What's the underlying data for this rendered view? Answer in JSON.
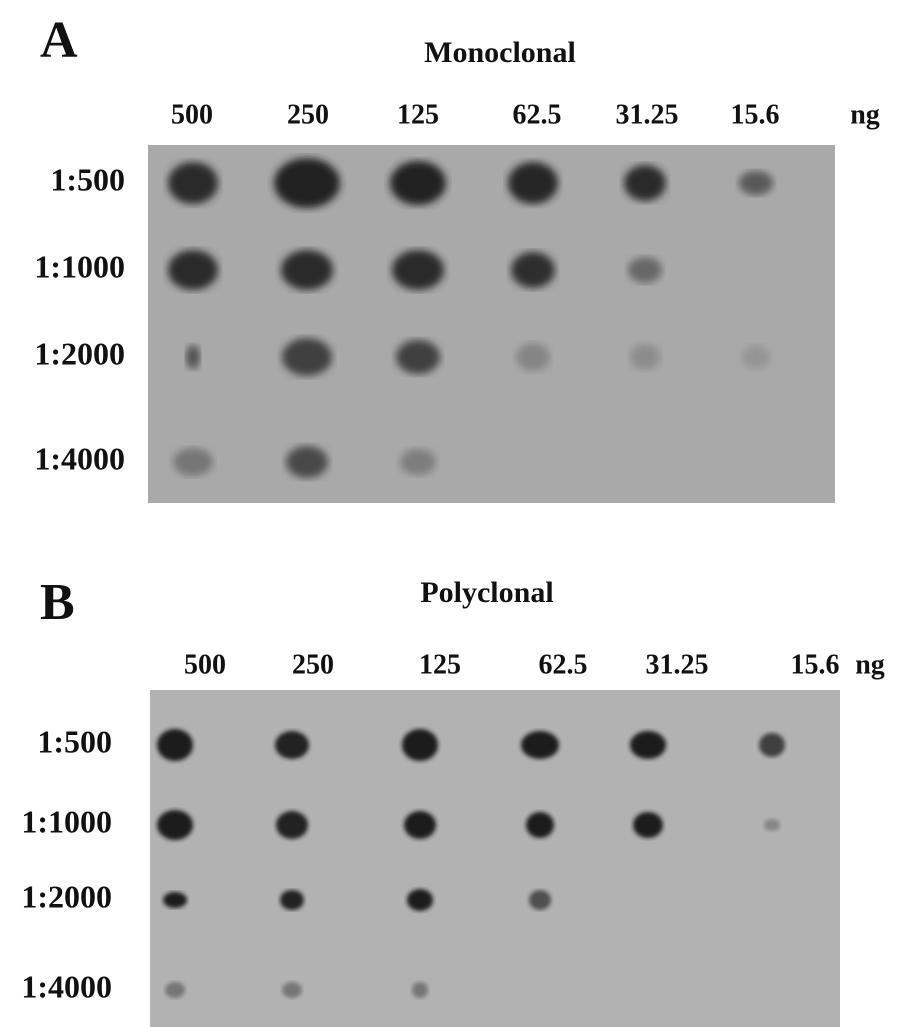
{
  "panels": [
    {
      "letter": "A",
      "title": "Monoclonal",
      "columns": [
        "500",
        "250",
        "125",
        "62.5",
        "31.25",
        "15.6"
      ],
      "unit": "ng",
      "rows": [
        "1:500",
        "1:1000",
        "1:2000",
        "1:4000"
      ]
    },
    {
      "letter": "B",
      "title": "Polyclonal",
      "columns": [
        "500",
        "250",
        "125",
        "62.5",
        "31.25",
        "15.6"
      ],
      "unit": "ng",
      "rows": [
        "1:500",
        "1:1000",
        "1:2000",
        "1:4000"
      ]
    }
  ]
}
